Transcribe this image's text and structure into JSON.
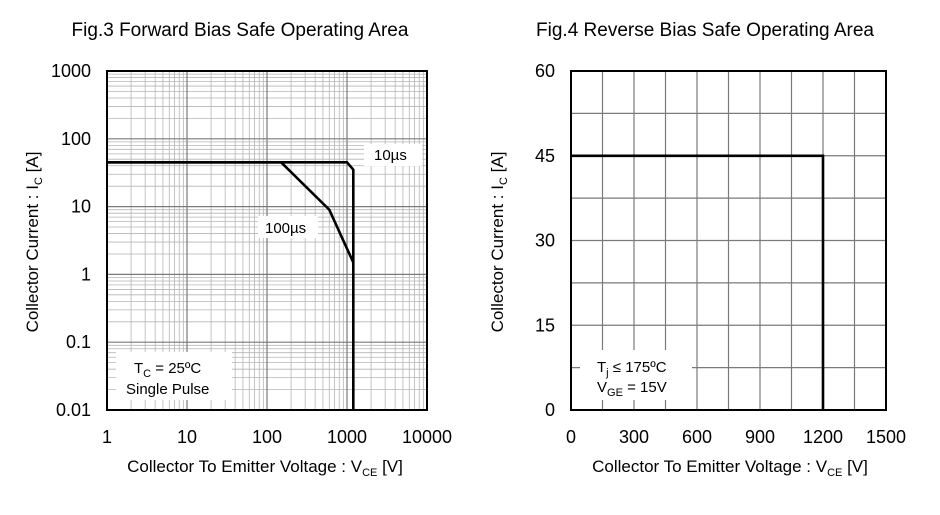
{
  "chart_data": [
    {
      "type": "line",
      "title": "Fig.3 Forward Bias Safe Operating Area",
      "xlabel": {
        "main": "Collector To Emitter Voltage : V",
        "sub": "CE",
        "unit": " [V]"
      },
      "ylabel": {
        "main": "Collector Current : I",
        "sub": "C",
        "unit": " [A]"
      },
      "x_scale": "log",
      "y_scale": "log",
      "xlim": [
        1,
        10000
      ],
      "ylim": [
        0.01,
        1000
      ],
      "x_ticks": [
        "1",
        "10",
        "100",
        "1000",
        "10000"
      ],
      "y_ticks": [
        "0.01",
        "0.1",
        "1",
        "10",
        "100",
        "1000"
      ],
      "grid": true,
      "series": [
        {
          "name": "10µs",
          "x": [
            1,
            1000,
            1200,
            1200
          ],
          "y": [
            45,
            45,
            35,
            0.01
          ]
        },
        {
          "name": "100µs",
          "x": [
            1,
            150,
            600,
            1200
          ],
          "y": [
            45,
            45,
            9,
            1.5
          ]
        }
      ],
      "annotations": [
        {
          "line1_main": "T",
          "line1_sub": "C",
          "line1_rest": " = 25ºC",
          "line2": "Single Pulse"
        }
      ]
    },
    {
      "type": "line",
      "title": "Fig.4 Reverse Bias Safe Operating Area",
      "xlabel": {
        "main": "Collector To Emitter Voltage : V",
        "sub": "CE",
        "unit": " [V]"
      },
      "ylabel": {
        "main": "Collector Current : I",
        "sub": "C",
        "unit": " [A]"
      },
      "x_scale": "linear",
      "y_scale": "linear",
      "xlim": [
        0,
        1500
      ],
      "ylim": [
        0,
        60
      ],
      "x_ticks": [
        "0",
        "300",
        "600",
        "900",
        "1200",
        "1500"
      ],
      "y_ticks": [
        "0",
        "15",
        "30",
        "45",
        "60"
      ],
      "grid": true,
      "series": [
        {
          "name": "",
          "x": [
            0,
            1200,
            1200
          ],
          "y": [
            45,
            45,
            0
          ]
        }
      ],
      "annotations": [
        {
          "line1_main": "T",
          "line1_sub": "j",
          "line1_rest": " ≤ 175ºC",
          "line2_main": "V",
          "line2_sub": "GE",
          "line2_rest": " = 15V"
        }
      ]
    }
  ]
}
